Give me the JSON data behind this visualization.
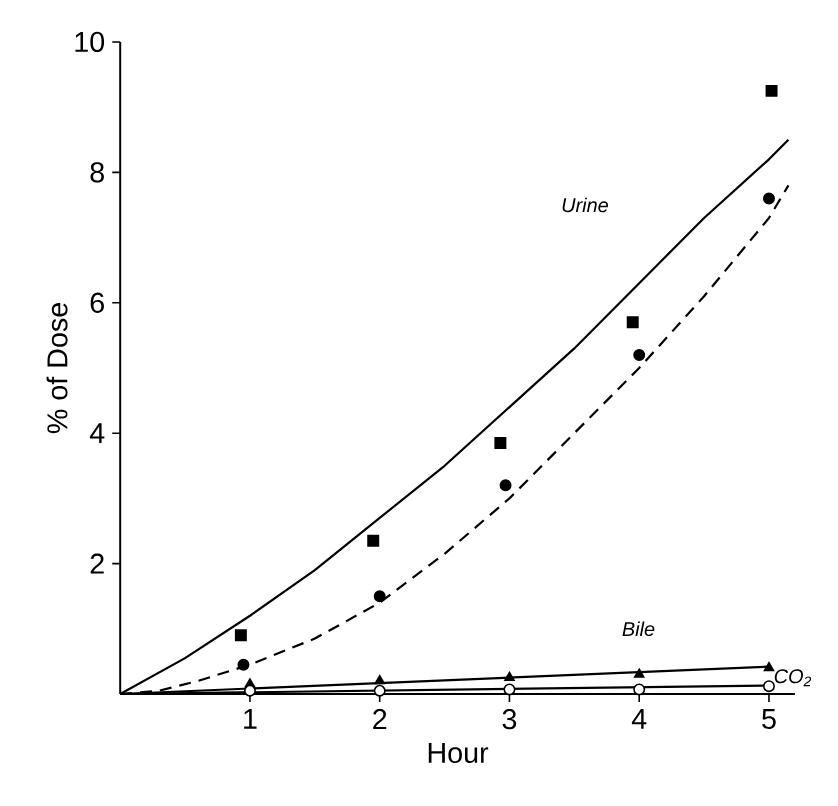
{
  "chart_data": {
    "type": "scatter",
    "xlabel": "Hour",
    "ylabel": "% of Dose",
    "xlim": [
      0,
      5.2
    ],
    "ylim": [
      0,
      10
    ],
    "xticks": [
      1,
      2,
      3,
      4,
      5
    ],
    "yticks": [
      2,
      4,
      6,
      8,
      10
    ],
    "grid": false,
    "series": [
      {
        "type": "line",
        "color": "#000000",
        "line_style": "solid",
        "marker": "none",
        "x": [
          0,
          0.5,
          1,
          1.5,
          2,
          2.5,
          3,
          3.5,
          4,
          4.5,
          5,
          5.15
        ],
        "values": [
          0,
          0.55,
          1.2,
          1.9,
          2.7,
          3.5,
          4.4,
          5.3,
          6.3,
          7.3,
          8.2,
          8.5
        ]
      },
      {
        "type": "line",
        "color": "#000000",
        "line_style": "dashed",
        "marker": "none",
        "x": [
          0,
          0.3,
          0.6,
          1,
          1.5,
          2,
          2.5,
          3,
          3.5,
          4,
          4.5,
          5,
          5.15
        ],
        "values": [
          0,
          0.05,
          0.2,
          0.45,
          0.85,
          1.4,
          2.15,
          3.0,
          4.0,
          5.0,
          6.1,
          7.3,
          7.8
        ]
      },
      {
        "type": "line",
        "color": "#000000",
        "line_style": "solid",
        "marker": "none",
        "x": [
          0,
          5
        ],
        "values": [
          0,
          0.42
        ]
      },
      {
        "type": "line",
        "color": "#000000",
        "line_style": "solid",
        "marker": "none",
        "x": [
          0,
          5
        ],
        "values": [
          0,
          0.13
        ]
      },
      {
        "color": "#000000",
        "marker": "square",
        "x": [
          0.93,
          1.95,
          2.93,
          3.95,
          5.02
        ],
        "values": [
          0.9,
          2.35,
          3.85,
          5.7,
          9.25
        ]
      },
      {
        "color": "#000000",
        "marker": "circle",
        "x": [
          0.95,
          2,
          2.97,
          4,
          5
        ],
        "values": [
          0.45,
          1.5,
          3.2,
          5.2,
          7.6
        ]
      },
      {
        "color": "#000000",
        "marker": "triangle",
        "x": [
          1,
          2,
          3,
          4,
          5
        ],
        "values": [
          0.15,
          0.2,
          0.25,
          0.3,
          0.4
        ]
      },
      {
        "color": "#ffffff",
        "marker": "circle",
        "x": [
          1,
          2,
          3,
          4,
          5
        ],
        "values": [
          0.05,
          0.05,
          0.07,
          0.07,
          0.12
        ]
      }
    ],
    "annotations": [
      "Urine",
      "Bile",
      "CO$_{2}$"
    ]
  }
}
